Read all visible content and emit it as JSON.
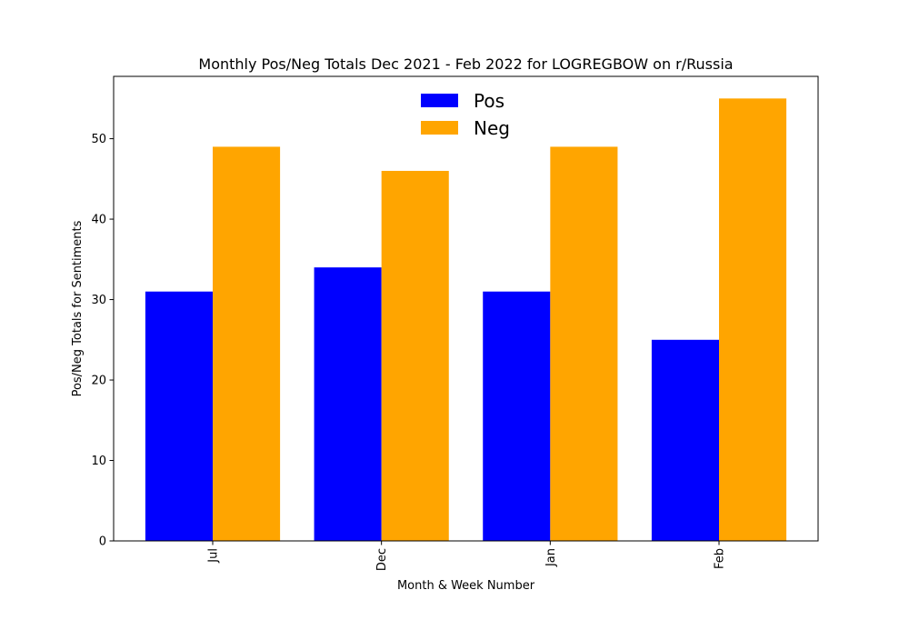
{
  "chart_data": {
    "type": "bar",
    "title": "Monthly Pos/Neg Totals Dec 2021 - Feb 2022 for LOGREGBOW on r/Russia",
    "xlabel": "Month & Week Number",
    "ylabel": "Pos/Neg Totals for Sentiments",
    "categories": [
      "Jul",
      "Dec",
      "Jan",
      "Feb"
    ],
    "series": [
      {
        "name": "Pos",
        "color": "#0000ff",
        "values": [
          31,
          34,
          31,
          25
        ]
      },
      {
        "name": "Neg",
        "color": "#ffa500",
        "values": [
          49,
          46,
          49,
          55
        ]
      }
    ],
    "ylim": [
      0,
      57.75
    ],
    "yticks": [
      0,
      10,
      20,
      30,
      40,
      50
    ],
    "grid": false,
    "legend_position": "top-center"
  }
}
